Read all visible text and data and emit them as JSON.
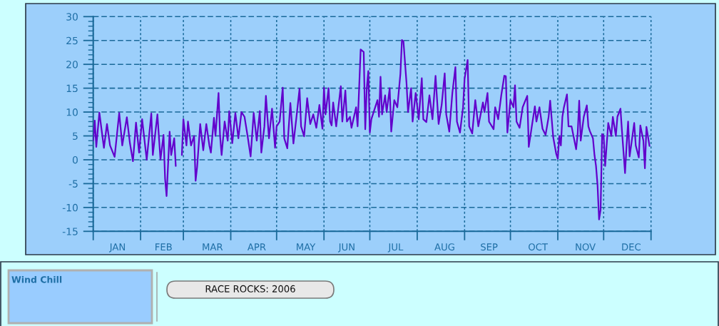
{
  "chart_data": {
    "type": "line",
    "title": "RACE ROCKS: 2006",
    "annotations": [
      "Wind Chill"
    ],
    "x": [
      "2006-01-01",
      "2006-01-02",
      "2006-01-03",
      "2006-01-05",
      "2006-01-08",
      "2006-01-10",
      "2006-01-12",
      "2006-01-15",
      "2006-01-18",
      "2006-01-20",
      "2006-01-23",
      "2006-01-25",
      "2006-01-27",
      "2006-01-29",
      "2006-01-31",
      "2006-02-02",
      "2006-02-05",
      "2006-02-08",
      "2006-02-09",
      "2006-02-12",
      "2006-02-14",
      "2006-02-16",
      "2006-02-17",
      "2006-02-18",
      "2006-02-20",
      "2006-02-21",
      "2006-02-23",
      "2006-02-24",
      "2006-02-26",
      "2006-02-28",
      "2006-03-01",
      "2006-03-03",
      "2006-03-04",
      "2006-03-06",
      "2006-03-08",
      "2006-03-09",
      "2006-03-10",
      "2006-03-12",
      "2006-03-14",
      "2006-03-16",
      "2006-03-18",
      "2006-03-19",
      "2006-03-21",
      "2006-03-22",
      "2006-03-24",
      "2006-03-25",
      "2006-03-26",
      "2006-03-28",
      "2006-03-30",
      "2006-03-31",
      "2006-04-02",
      "2006-04-04",
      "2006-04-06",
      "2006-04-08",
      "2006-04-10",
      "2006-04-12",
      "2006-04-14",
      "2006-04-16",
      "2006-04-18",
      "2006-04-20",
      "2006-04-21",
      "2006-04-23",
      "2006-04-24",
      "2006-04-26",
      "2006-04-28",
      "2006-04-30",
      "2006-05-01",
      "2006-05-03",
      "2006-05-05",
      "2006-05-06",
      "2006-05-08",
      "2006-05-10",
      "2006-05-12",
      "2006-05-14",
      "2006-05-16",
      "2006-05-17",
      "2006-05-19",
      "2006-05-21",
      "2006-05-23",
      "2006-05-25",
      "2006-05-27",
      "2006-05-29",
      "2006-05-31",
      "2006-06-01",
      "2006-06-02",
      "2006-06-04",
      "2006-06-05",
      "2006-06-06",
      "2006-06-07",
      "2006-06-09",
      "2006-06-12",
      "2006-06-13",
      "2006-06-15",
      "2006-06-16",
      "2006-06-18",
      "2006-06-19",
      "2006-06-22",
      "2006-06-23",
      "2006-06-25",
      "2006-06-27",
      "2006-06-28",
      "2006-06-29",
      "2006-06-30",
      "2006-07-01",
      "2006-07-02",
      "2006-07-06",
      "2006-07-07",
      "2006-07-08",
      "2006-07-09",
      "2006-07-11",
      "2006-07-12",
      "2006-07-14",
      "2006-07-15",
      "2006-07-17",
      "2006-07-19",
      "2006-07-21",
      "2006-07-22",
      "2006-07-23",
      "2006-07-25",
      "2006-07-26",
      "2006-07-28",
      "2006-07-29",
      "2006-07-31",
      "2006-08-02",
      "2006-08-04",
      "2006-08-05",
      "2006-08-07",
      "2006-08-09",
      "2006-08-11",
      "2006-08-13",
      "2006-08-15",
      "2006-08-17",
      "2006-08-19",
      "2006-08-20",
      "2006-08-22",
      "2006-08-24",
      "2006-08-26",
      "2006-08-27",
      "2006-08-29",
      "2006-08-31",
      "2006-09-01",
      "2006-09-03",
      "2006-09-04",
      "2006-09-06",
      "2006-09-08",
      "2006-09-10",
      "2006-09-13",
      "2006-09-14",
      "2006-09-16",
      "2006-09-17",
      "2006-09-20",
      "2006-09-21",
      "2006-09-23",
      "2006-09-25",
      "2006-09-27",
      "2006-09-28",
      "2006-09-29",
      "2006-10-01",
      "2006-10-03",
      "2006-10-04",
      "2006-10-05",
      "2006-10-07",
      "2006-10-09",
      "2006-10-12",
      "2006-10-13",
      "2006-10-15",
      "2006-10-17",
      "2006-10-18",
      "2006-10-20",
      "2006-10-22",
      "2006-10-24",
      "2006-10-26",
      "2006-10-27",
      "2006-10-29",
      "2006-10-31",
      "2006-11-01",
      "2006-11-02",
      "2006-11-03",
      "2006-11-04",
      "2006-11-05",
      "2006-11-07",
      "2006-11-08",
      "2006-11-10",
      "2006-11-13",
      "2006-11-14",
      "2006-11-15",
      "2006-11-16",
      "2006-11-18",
      "2006-11-20",
      "2006-11-21",
      "2006-11-22",
      "2006-11-24",
      "2006-11-25",
      "2006-11-26",
      "2006-11-27",
      "2006-11-28",
      "2006-11-29",
      "2006-11-30",
      "2006-12-01",
      "2006-12-02",
      "2006-12-04",
      "2006-12-06",
      "2006-12-07",
      "2006-12-09",
      "2006-12-10",
      "2006-12-12",
      "2006-12-13",
      "2006-12-15",
      "2006-12-16",
      "2006-12-17",
      "2006-12-18",
      "2006-12-21",
      "2006-12-22",
      "2006-12-24",
      "2006-12-25",
      "2006-12-27",
      "2006-12-28",
      "2006-12-29",
      "2006-12-31"
    ],
    "series": [
      {
        "color": "#6200cc",
        "values": [
          4.0,
          8.2,
          2.7,
          9.9,
          2.5,
          7.5,
          3.0,
          0.6,
          9.8,
          3.0,
          8.9,
          3.5,
          -0.3,
          7.8,
          1.5,
          8.5,
          0.0,
          9.7,
          1.0,
          9.5,
          0.0,
          5.2,
          -3.9,
          -7.6,
          5.9,
          1.0,
          4.5,
          -1.3,
          null,
          1.0,
          8.5,
          3.0,
          8.0,
          3.0,
          5.0,
          -4.4,
          -1.5,
          7.5,
          2.0,
          7.5,
          3.0,
          1.5,
          8.8,
          5.0,
          14.0,
          5.0,
          1.0,
          8.0,
          4.0,
          10.2,
          3.5,
          9.8,
          4.5,
          10.0,
          9.0,
          5.0,
          0.7,
          9.8,
          4.0,
          10.2,
          1.5,
          7.0,
          13.4,
          4.5,
          10.7,
          2.5,
          7.0,
          8.0,
          15.1,
          4.5,
          2.4,
          11.9,
          3.4,
          9.0,
          14.9,
          7.0,
          4.9,
          12.9,
          7.5,
          9.5,
          6.7,
          11.5,
          6.5,
          15.1,
          9.5,
          15.0,
          8.0,
          7.2,
          12.0,
          7.0,
          15.4,
          8.0,
          14.5,
          8.0,
          9.0,
          6.7,
          11.0,
          7.0,
          23.1,
          22.6,
          6.4,
          15.0,
          18.6,
          5.7,
          8.5,
          12.5,
          9.0,
          17.4,
          9.5,
          13.5,
          10.0,
          15.0,
          5.9,
          12.5,
          11.0,
          18.0,
          25.1,
          24.8,
          16.1,
          10.0,
          15.0,
          8.0,
          14.0,
          8.5,
          17.1,
          8.5,
          7.9,
          13.5,
          8.5,
          17.6,
          7.5,
          11.5,
          18.1,
          9.5,
          5.9,
          14.0,
          19.4,
          8.0,
          5.7,
          11.0,
          17.0,
          20.9,
          7.0,
          5.5,
          12.5,
          7.0,
          12.0,
          10.0,
          14.0,
          8.0,
          6.4,
          11.0,
          8.5,
          13.5,
          17.6,
          17.5,
          5.7,
          12.5,
          11.0,
          15.6,
          8.0,
          6.7,
          11.0,
          13.4,
          2.7,
          7.0,
          11.2,
          8.0,
          11.0,
          6.5,
          5.2,
          9.0,
          12.4,
          4.7,
          1.2,
          0.2,
          5.0,
          3.0,
          9.0,
          11.0,
          13.7,
          7.0,
          7.0,
          2.2,
          5.5,
          12.4,
          4.0,
          9.0,
          11.4,
          7.0,
          6.0,
          4.5,
          1.0,
          -1.3,
          -5.3,
          -12.5,
          -10.5,
          5.4,
          5.0,
          -1.3,
          7.7,
          5.0,
          9.0,
          5.0,
          9.0,
          10.7,
          6.0,
          -2.8,
          3.0,
          8.0,
          0.7,
          7.7,
          3.0,
          0.5,
          7.2,
          4.0,
          -1.8,
          6.9,
          2.9
        ]
      }
    ],
    "xlim": [
      "2006-01-01",
      "2007-01-01"
    ],
    "xticks": [
      {
        "value": "2006-01-01",
        "label": null
      },
      {
        "value": "2006-01-17",
        "label": "JAN"
      },
      {
        "value": "2006-02-01",
        "label": null
      },
      {
        "value": "2006-02-16",
        "label": "FEB"
      },
      {
        "value": "2006-03-01",
        "label": null
      },
      {
        "value": "2006-03-20",
        "label": "MAR"
      },
      {
        "value": "2006-04-01",
        "label": null
      },
      {
        "value": "2006-04-18",
        "label": "APR"
      },
      {
        "value": "2006-05-01",
        "label": null
      },
      {
        "value": "2006-05-20",
        "label": "MAY"
      },
      {
        "value": "2006-06-01",
        "label": null
      },
      {
        "value": "2006-06-16",
        "label": "JUN"
      },
      {
        "value": "2006-07-01",
        "label": null
      },
      {
        "value": "2006-07-18",
        "label": "JUL"
      },
      {
        "value": "2006-08-01",
        "label": null
      },
      {
        "value": "2006-08-19",
        "label": "AUG"
      },
      {
        "value": "2006-09-01",
        "label": null
      },
      {
        "value": "2006-09-17",
        "label": "SEP"
      },
      {
        "value": "2006-10-01",
        "label": null
      },
      {
        "value": "2006-10-19",
        "label": "OCT"
      },
      {
        "value": "2006-11-01",
        "label": null
      },
      {
        "value": "2006-11-19",
        "label": "NOV"
      },
      {
        "value": "2006-12-01",
        "label": null
      },
      {
        "value": "2006-12-19",
        "label": "DEC"
      },
      {
        "value": "2007-01-01",
        "label": null
      }
    ],
    "ylim": [
      -15,
      30
    ],
    "yticks": [
      -15,
      {
        "value": -14,
        "label": null
      },
      {
        "value": -13,
        "label": null
      },
      {
        "value": -12,
        "label": null
      },
      {
        "value": -11,
        "label": null
      },
      -10,
      {
        "value": -9,
        "label": null
      },
      {
        "value": -8,
        "label": null
      },
      {
        "value": -7,
        "label": null
      },
      {
        "value": -6,
        "label": null
      },
      -5,
      {
        "value": -4,
        "label": null
      },
      {
        "value": -3,
        "label": null
      },
      {
        "value": -2,
        "label": null
      },
      {
        "value": -1,
        "label": null
      },
      0,
      {
        "value": 1,
        "label": null
      },
      {
        "value": 2,
        "label": null
      },
      {
        "value": 3,
        "label": null
      },
      {
        "value": 4,
        "label": null
      },
      5,
      {
        "value": 6,
        "label": null
      },
      {
        "value": 7,
        "label": null
      },
      {
        "value": 8,
        "label": null
      },
      {
        "value": 9,
        "label": null
      },
      10,
      {
        "value": 11,
        "label": null
      },
      {
        "value": 12,
        "label": null
      },
      {
        "value": 13,
        "label": null
      },
      {
        "value": 14,
        "label": null
      },
      15,
      {
        "value": 16,
        "label": null
      },
      {
        "value": 17,
        "label": null
      },
      {
        "value": 18,
        "label": null
      },
      {
        "value": 19,
        "label": null
      },
      20,
      {
        "value": 21,
        "label": null
      },
      {
        "value": 22,
        "label": null
      },
      {
        "value": 23,
        "label": null
      },
      {
        "value": 24,
        "label": null
      },
      25,
      {
        "value": 26,
        "label": null
      },
      {
        "value": 27,
        "label": null
      },
      {
        "value": 28,
        "label": null
      },
      {
        "value": 29,
        "label": null
      },
      30
    ],
    "grid": true,
    "line_style": "solid"
  }
}
